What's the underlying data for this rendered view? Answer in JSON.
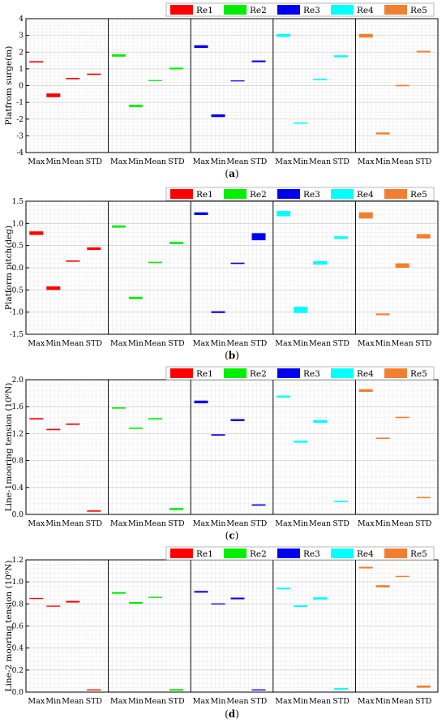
{
  "chart_data": [
    {
      "type": "bar",
      "panel_label": "(a)",
      "ylabel": "Platfrom surge(m)",
      "ylim": [
        -4,
        4
      ],
      "yticks": [
        "4",
        "3",
        "2",
        "1",
        "0",
        "-1",
        "-2",
        "-3",
        "-4"
      ],
      "categories": [
        "Max",
        "Min",
        "Mean",
        "STD"
      ],
      "legend": [
        "Re1",
        "Re2",
        "Re3",
        "Re4",
        "Re5"
      ],
      "legend_position": "top-right",
      "grid": true,
      "series": [
        {
          "name": "Re1",
          "color": "#ff0000",
          "values": [
            1.42,
            -0.58,
            0.42,
            0.68
          ],
          "thickness": [
            0.08,
            0.22,
            0.08,
            0.08
          ]
        },
        {
          "name": "Re2",
          "color": "#00ee00",
          "values": [
            1.8,
            -1.22,
            0.3,
            1.02
          ],
          "thickness": [
            0.14,
            0.14,
            0.06,
            0.1
          ]
        },
        {
          "name": "Re3",
          "color": "#0000ee",
          "values": [
            2.33,
            -1.8,
            0.28,
            1.45
          ],
          "thickness": [
            0.16,
            0.16,
            0.06,
            0.1
          ]
        },
        {
          "name": "Re4",
          "color": "#00ffff",
          "values": [
            3.0,
            -2.24,
            0.36,
            1.75
          ],
          "thickness": [
            0.18,
            0.08,
            0.08,
            0.12
          ]
        },
        {
          "name": "Re5",
          "color": "#f08030",
          "values": [
            2.98,
            -2.86,
            0.0,
            2.03
          ],
          "thickness": [
            0.22,
            0.12,
            0.08,
            0.1
          ]
        }
      ]
    },
    {
      "type": "bar",
      "panel_label": "(b)",
      "ylabel": "Platform pitch(deg)",
      "ylim": [
        -1.5,
        1.5
      ],
      "yticks": [
        "1.5",
        "1.0",
        "0.5",
        "0.0",
        "-0.5",
        "-1.0",
        "-1.5"
      ],
      "categories": [
        "Max",
        "Min",
        "Mean",
        "STD"
      ],
      "legend": [
        "Re1",
        "Re2",
        "Re3",
        "Re4",
        "Re5"
      ],
      "legend_position": "top-right",
      "grid": true,
      "series": [
        {
          "name": "Re1",
          "color": "#ff0000",
          "values": [
            0.78,
            -0.46,
            0.15,
            0.43
          ],
          "thickness": [
            0.08,
            0.08,
            0.03,
            0.06
          ]
        },
        {
          "name": "Re2",
          "color": "#00ee00",
          "values": [
            0.93,
            -0.68,
            0.12,
            0.56
          ],
          "thickness": [
            0.05,
            0.05,
            0.03,
            0.05
          ]
        },
        {
          "name": "Re3",
          "color": "#0000ee",
          "values": [
            1.22,
            -1.0,
            0.1,
            0.7
          ],
          "thickness": [
            0.06,
            0.04,
            0.03,
            0.16
          ]
        },
        {
          "name": "Re4",
          "color": "#00ffff",
          "values": [
            1.22,
            -0.95,
            0.11,
            0.68
          ],
          "thickness": [
            0.12,
            0.14,
            0.08,
            0.06
          ]
        },
        {
          "name": "Re5",
          "color": "#f08030",
          "values": [
            1.18,
            -1.05,
            0.05,
            0.71
          ],
          "thickness": [
            0.14,
            0.04,
            0.1,
            0.1
          ]
        }
      ]
    },
    {
      "type": "bar",
      "panel_label": "(c)",
      "ylabel": "Line-1mooring tension (10⁶N)",
      "ylim": [
        0.0,
        2.0
      ],
      "yticks": [
        "2.0",
        "1.6",
        "1.2",
        "0.8",
        "0.4",
        "0.0"
      ],
      "categories": [
        "Max",
        "Min",
        "Mean",
        "STD"
      ],
      "legend": [
        "Re1",
        "Re2",
        "Re3",
        "Re4",
        "Re5"
      ],
      "legend_position": "top-right",
      "grid": true,
      "series": [
        {
          "name": "Re1",
          "color": "#ff0000",
          "values": [
            1.42,
            1.26,
            1.34,
            0.05
          ],
          "thickness": [
            0.02,
            0.02,
            0.02,
            0.02
          ]
        },
        {
          "name": "Re2",
          "color": "#00ee00",
          "values": [
            1.58,
            1.28,
            1.42,
            0.08
          ],
          "thickness": [
            0.02,
            0.02,
            0.02,
            0.03
          ]
        },
        {
          "name": "Re3",
          "color": "#0000ee",
          "values": [
            1.67,
            1.18,
            1.4,
            0.14
          ],
          "thickness": [
            0.04,
            0.02,
            0.03,
            0.02
          ]
        },
        {
          "name": "Re4",
          "color": "#00ffff",
          "values": [
            1.75,
            1.08,
            1.38,
            0.19
          ],
          "thickness": [
            0.03,
            0.03,
            0.04,
            0.02
          ]
        },
        {
          "name": "Re5",
          "color": "#f08030",
          "values": [
            1.84,
            1.13,
            1.44,
            0.25
          ],
          "thickness": [
            0.04,
            0.02,
            0.02,
            0.02
          ]
        }
      ]
    },
    {
      "type": "bar",
      "panel_label": "(d)",
      "ylabel": "Line-2 mooring tension (10⁶N)",
      "ylim": [
        0.0,
        1.2
      ],
      "yticks": [
        "1.2",
        "1.0",
        "0.8",
        "0.6",
        "0.4",
        "0.2",
        "0.0"
      ],
      "categories": [
        "Max",
        "Min",
        "Mean",
        "STD"
      ],
      "legend": [
        "Re1",
        "Re2",
        "Re3",
        "Re4",
        "Re5"
      ],
      "legend_position": "top-right",
      "grid": true,
      "series": [
        {
          "name": "Re1",
          "color": "#ff0000",
          "values": [
            0.85,
            0.78,
            0.82,
            0.02
          ],
          "thickness": [
            0.01,
            0.01,
            0.015,
            0.01
          ]
        },
        {
          "name": "Re2",
          "color": "#00ee00",
          "values": [
            0.9,
            0.81,
            0.86,
            0.02
          ],
          "thickness": [
            0.015,
            0.015,
            0.01,
            0.015
          ]
        },
        {
          "name": "Re3",
          "color": "#0000ee",
          "values": [
            0.91,
            0.8,
            0.85,
            0.02
          ],
          "thickness": [
            0.015,
            0.01,
            0.015,
            0.01
          ]
        },
        {
          "name": "Re4",
          "color": "#00ffff",
          "values": [
            0.94,
            0.78,
            0.85,
            0.03
          ],
          "thickness": [
            0.015,
            0.015,
            0.02,
            0.015
          ]
        },
        {
          "name": "Re5",
          "color": "#f08030",
          "values": [
            1.13,
            0.96,
            1.05,
            0.05
          ],
          "thickness": [
            0.015,
            0.02,
            0.01,
            0.02
          ]
        }
      ]
    }
  ]
}
